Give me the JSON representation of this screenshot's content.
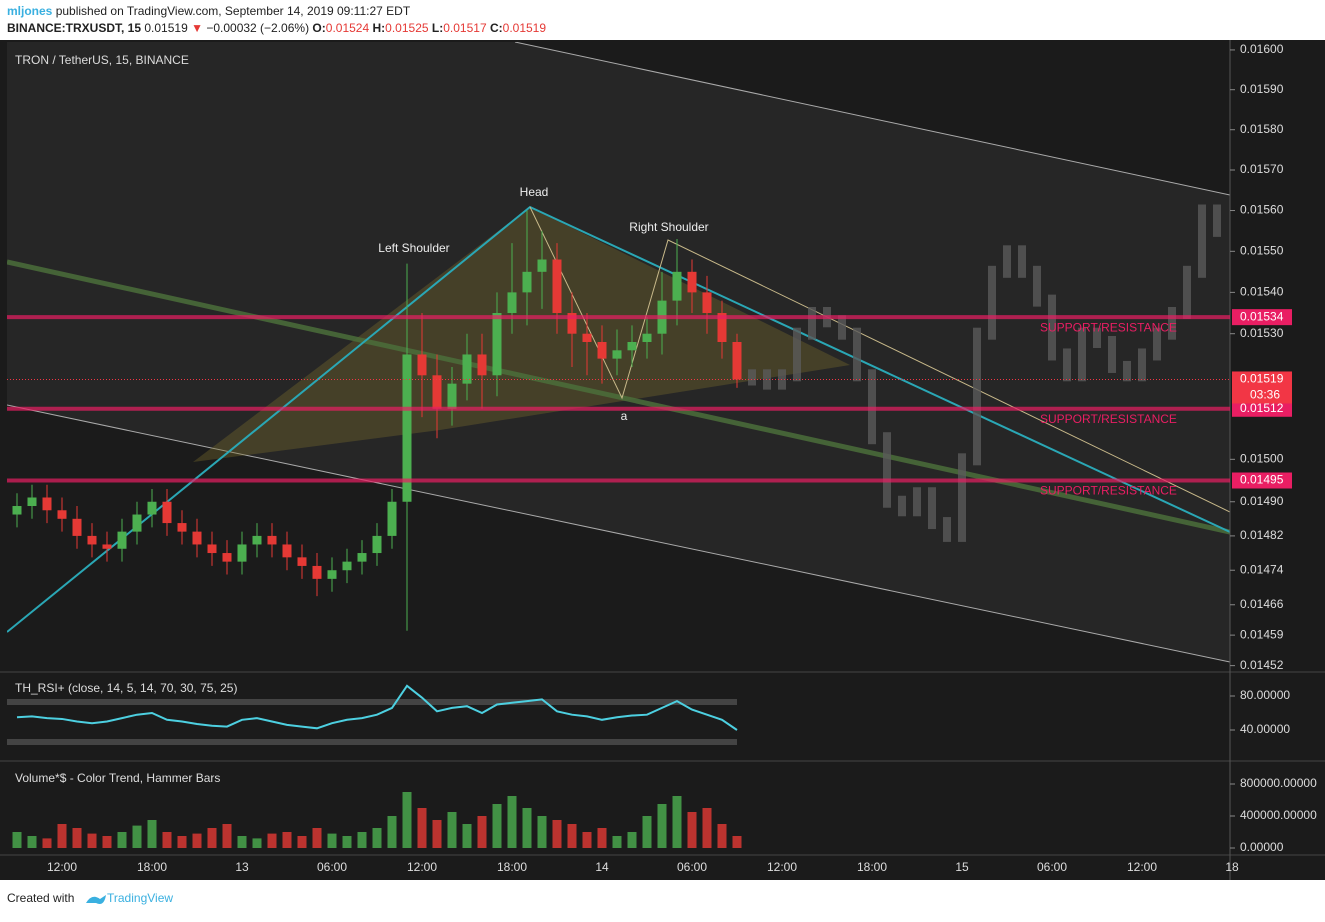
{
  "header": {
    "author": "mljones",
    "published": "published on TradingView.com, September 14, 2019 09:11:27 EDT",
    "symbol": "BINANCE:TRXUSDT, 15",
    "price": 0.01519,
    "arrow": "▼",
    "change": "−0.00032 (−2.06%)",
    "ohlc": [
      {
        "label": "O:",
        "value": 0.01524
      },
      {
        "label": "H:",
        "value": 0.01525
      },
      {
        "label": "L:",
        "value": 0.01517
      },
      {
        "label": "C:",
        "value": 0.01519
      }
    ]
  },
  "footer": {
    "text": "Created with",
    "brand": "TradingView"
  },
  "chart_data": [
    {
      "type": "candlestick",
      "title": "TRON / TetherUS, 15, BINANCE",
      "log_scale": true,
      "grid": false,
      "categories": [
        null,
        null,
        null,
        "12:00",
        null,
        null,
        null,
        null,
        null,
        "18:00",
        null,
        null,
        null,
        null,
        null,
        "13",
        null,
        null,
        null,
        null,
        null,
        "06:00",
        null,
        null,
        null,
        null,
        null,
        "12:00",
        null,
        null,
        null,
        null,
        null,
        "18:00",
        null,
        null,
        null,
        null,
        null,
        "14",
        null,
        null,
        null,
        null,
        null,
        "06:00",
        null,
        null,
        null,
        null,
        null,
        "12:00",
        null,
        null,
        null,
        null,
        null,
        "18:00",
        null,
        null,
        null,
        null,
        null,
        "15",
        null,
        null,
        null,
        null,
        null,
        "06:00",
        null,
        null,
        null,
        null,
        null,
        "12:00",
        null,
        null,
        null,
        null,
        null,
        "18"
      ],
      "ylim": [
        0.01451,
        0.01602
      ],
      "yticks": [
        {
          "value": 0.016,
          "label": "0.01600"
        },
        {
          "value": 0.0159,
          "label": "0.01590"
        },
        {
          "value": 0.0158,
          "label": "0.01580"
        },
        {
          "value": 0.0157,
          "label": "0.01570"
        },
        {
          "value": 0.0156,
          "label": "0.01560"
        },
        {
          "value": 0.0155,
          "label": "0.01550"
        },
        {
          "value": 0.0154,
          "label": "0.01540"
        },
        {
          "value": 0.0153,
          "label": "0.01530"
        },
        {
          "value": 0.015,
          "label": "0.01500"
        },
        {
          "value": 0.0149,
          "label": "0.01490"
        },
        {
          "value": 0.01482,
          "label": "0.01482"
        },
        {
          "value": 0.01474,
          "label": "0.01474"
        },
        {
          "value": 0.01466,
          "label": "0.01466"
        },
        {
          "value": 0.01459,
          "label": "0.01459"
        },
        {
          "value": 0.01452,
          "label": "0.01452"
        }
      ],
      "up_color": "#4caf50",
      "down_color": "#e53935",
      "open": [
        0.01487,
        0.01489,
        0.01491,
        0.01488,
        0.01486,
        0.01482,
        0.0148,
        0.01479,
        0.01483,
        0.01487,
        0.0149,
        0.01485,
        0.01483,
        0.0148,
        0.01478,
        0.01476,
        0.0148,
        0.01482,
        0.0148,
        0.01477,
        0.01475,
        0.01472,
        0.01474,
        0.01476,
        0.01478,
        0.01482,
        0.0149,
        0.01525,
        0.0152,
        0.01512,
        0.01518,
        0.01525,
        0.0152,
        0.01535,
        0.0154,
        0.01545,
        0.01548,
        0.01535,
        0.0153,
        0.01528,
        0.01524,
        0.01526,
        0.01528,
        0.0153,
        0.01538,
        0.01545,
        0.0154,
        0.01535,
        0.01528,
        null,
        null,
        null,
        null,
        null,
        null,
        null,
        null,
        null,
        null,
        null,
        null,
        null,
        null,
        null,
        null,
        null,
        null,
        null,
        null,
        null,
        null,
        null,
        null,
        null,
        null,
        null,
        null,
        null,
        null,
        null,
        null,
        null
      ],
      "high": [
        0.01492,
        0.01494,
        0.01494,
        0.01491,
        0.01489,
        0.01485,
        0.01483,
        0.01486,
        0.0149,
        0.01493,
        0.01493,
        0.01488,
        0.01486,
        0.01483,
        0.01481,
        0.01483,
        0.01485,
        0.01485,
        0.01483,
        0.0148,
        0.01478,
        0.01477,
        0.01479,
        0.01481,
        0.01485,
        0.01493,
        0.01547,
        0.01535,
        0.01525,
        0.01522,
        0.0153,
        0.0153,
        0.0154,
        0.01552,
        0.0156,
        0.01555,
        0.01552,
        0.0154,
        0.01535,
        0.01532,
        0.01531,
        0.01532,
        0.01534,
        0.01545,
        0.01553,
        0.01548,
        0.01544,
        0.01538,
        0.0153,
        null,
        null,
        null,
        null,
        null,
        null,
        null,
        null,
        null,
        null,
        null,
        null,
        null,
        null,
        null,
        null,
        null,
        null,
        null,
        null,
        null,
        null,
        null,
        null,
        null,
        null,
        null,
        null,
        null,
        null,
        null,
        null,
        null
      ],
      "low": [
        0.01484,
        0.01486,
        0.01485,
        0.01483,
        0.01479,
        0.01477,
        0.01476,
        0.01476,
        0.0148,
        0.01484,
        0.01482,
        0.0148,
        0.01477,
        0.01475,
        0.01473,
        0.01473,
        0.01477,
        0.01477,
        0.01474,
        0.01472,
        0.01468,
        0.01469,
        0.01471,
        0.01473,
        0.01475,
        0.01479,
        0.0146,
        0.0151,
        0.01505,
        0.01508,
        0.01514,
        0.01512,
        0.01515,
        0.0153,
        0.01532,
        0.01536,
        0.0153,
        0.01522,
        0.0152,
        0.01518,
        0.0152,
        0.01522,
        0.01524,
        0.01525,
        0.01532,
        0.01535,
        0.0153,
        0.01524,
        0.01517,
        null,
        null,
        null,
        null,
        null,
        null,
        null,
        null,
        null,
        null,
        null,
        null,
        null,
        null,
        null,
        null,
        null,
        null,
        null,
        null,
        null,
        null,
        null,
        null,
        null,
        null,
        null,
        null,
        null,
        null,
        null,
        null,
        null
      ],
      "close": [
        0.01489,
        0.01491,
        0.01488,
        0.01486,
        0.01482,
        0.0148,
        0.01479,
        0.01483,
        0.01487,
        0.0149,
        0.01485,
        0.01483,
        0.0148,
        0.01478,
        0.01476,
        0.0148,
        0.01482,
        0.0148,
        0.01477,
        0.01475,
        0.01472,
        0.01474,
        0.01476,
        0.01478,
        0.01482,
        0.0149,
        0.01525,
        0.0152,
        0.01512,
        0.01518,
        0.01525,
        0.0152,
        0.01535,
        0.0154,
        0.01545,
        0.01548,
        0.01535,
        0.0153,
        0.01528,
        0.01524,
        0.01526,
        0.01528,
        0.0153,
        0.01538,
        0.01545,
        0.0154,
        0.01535,
        0.01528,
        0.01519,
        null,
        null,
        null,
        null,
        null,
        null,
        null,
        null,
        null,
        null,
        null,
        null,
        null,
        null,
        null,
        null,
        null,
        null,
        null,
        null,
        null,
        null,
        null,
        null,
        null,
        null,
        null,
        null,
        null,
        null,
        null,
        null,
        null
      ],
      "projection": {
        "color": "#5a5a5a",
        "values": [
          null,
          null,
          null,
          null,
          null,
          null,
          null,
          null,
          null,
          null,
          null,
          null,
          null,
          null,
          null,
          null,
          null,
          null,
          null,
          null,
          null,
          null,
          null,
          null,
          null,
          null,
          null,
          null,
          null,
          null,
          null,
          null,
          null,
          null,
          null,
          null,
          null,
          null,
          null,
          null,
          null,
          null,
          null,
          null,
          null,
          null,
          null,
          null,
          0.01519,
          0.0152,
          0.01518,
          0.0152,
          0.0153,
          0.01535,
          0.01533,
          0.0153,
          0.0152,
          0.01505,
          0.0149,
          0.01488,
          0.01492,
          0.01485,
          0.01482,
          0.015,
          0.0153,
          0.01545,
          0.0155,
          0.01545,
          0.01538,
          0.01525,
          0.0152,
          0.0153,
          0.01528,
          0.01522,
          0.0152,
          0.01525,
          0.0153,
          0.01535,
          0.01545,
          0.0156,
          0.01555,
          null
        ]
      },
      "levels": [
        {
          "value": 0.01534,
          "label": "0.01534",
          "text": "SUPPORT/RESISTANCE"
        },
        {
          "value": 0.01512,
          "label": "0.01512",
          "text": "SUPPORT/RESISTANCE"
        },
        {
          "value": 0.01495,
          "label": "0.01495",
          "text": "SUPPORT/RESISTANCE"
        }
      ],
      "level_color": "#e91e63",
      "last_price": {
        "value": 0.01519,
        "label": "0.01519",
        "countdown": "03:36",
        "color": "#f23645"
      },
      "annotations": [
        "Left Shoulder",
        "Head",
        "Right Shoulder",
        "a"
      ]
    },
    {
      "type": "line",
      "title": "TH_RSI+ (close, 14, 5, 14, 70, 30, 75, 25)",
      "color": "#4dd0e1",
      "ylim": [
        4.7,
        104.7
      ],
      "yticks": [
        {
          "value": 80,
          "label": "80.00000"
        },
        {
          "value": 40,
          "label": "40.00000"
        }
      ],
      "values": [
        55,
        56,
        54,
        53,
        50,
        48,
        50,
        54,
        58,
        60,
        52,
        50,
        47,
        45,
        44,
        52,
        54,
        50,
        46,
        44,
        42,
        48,
        52,
        54,
        58,
        66,
        92,
        78,
        62,
        66,
        68,
        60,
        70,
        72,
        74,
        76,
        62,
        58,
        56,
        52,
        55,
        57,
        58,
        66,
        74,
        64,
        58,
        52,
        40
      ]
    },
    {
      "type": "bar",
      "title": "Volume*$ - Color Trend, Hammer Bars",
      "ylim": [
        0,
        1075000
      ],
      "yticks": [
        {
          "value": 800000,
          "label": "800000.00000"
        },
        {
          "value": 400000,
          "label": "400000.00000"
        },
        {
          "value": 0,
          "label": "0.00000"
        }
      ],
      "values": [
        200000,
        150000,
        120000,
        300000,
        250000,
        180000,
        150000,
        200000,
        280000,
        350000,
        200000,
        150000,
        180000,
        250000,
        300000,
        150000,
        120000,
        180000,
        200000,
        150000,
        250000,
        180000,
        150000,
        200000,
        250000,
        400000,
        700000,
        500000,
        350000,
        450000,
        300000,
        400000,
        550000,
        650000,
        500000,
        400000,
        350000,
        300000,
        200000,
        250000,
        150000,
        200000,
        400000,
        550000,
        650000,
        450000,
        500000,
        300000,
        150000
      ]
    }
  ]
}
